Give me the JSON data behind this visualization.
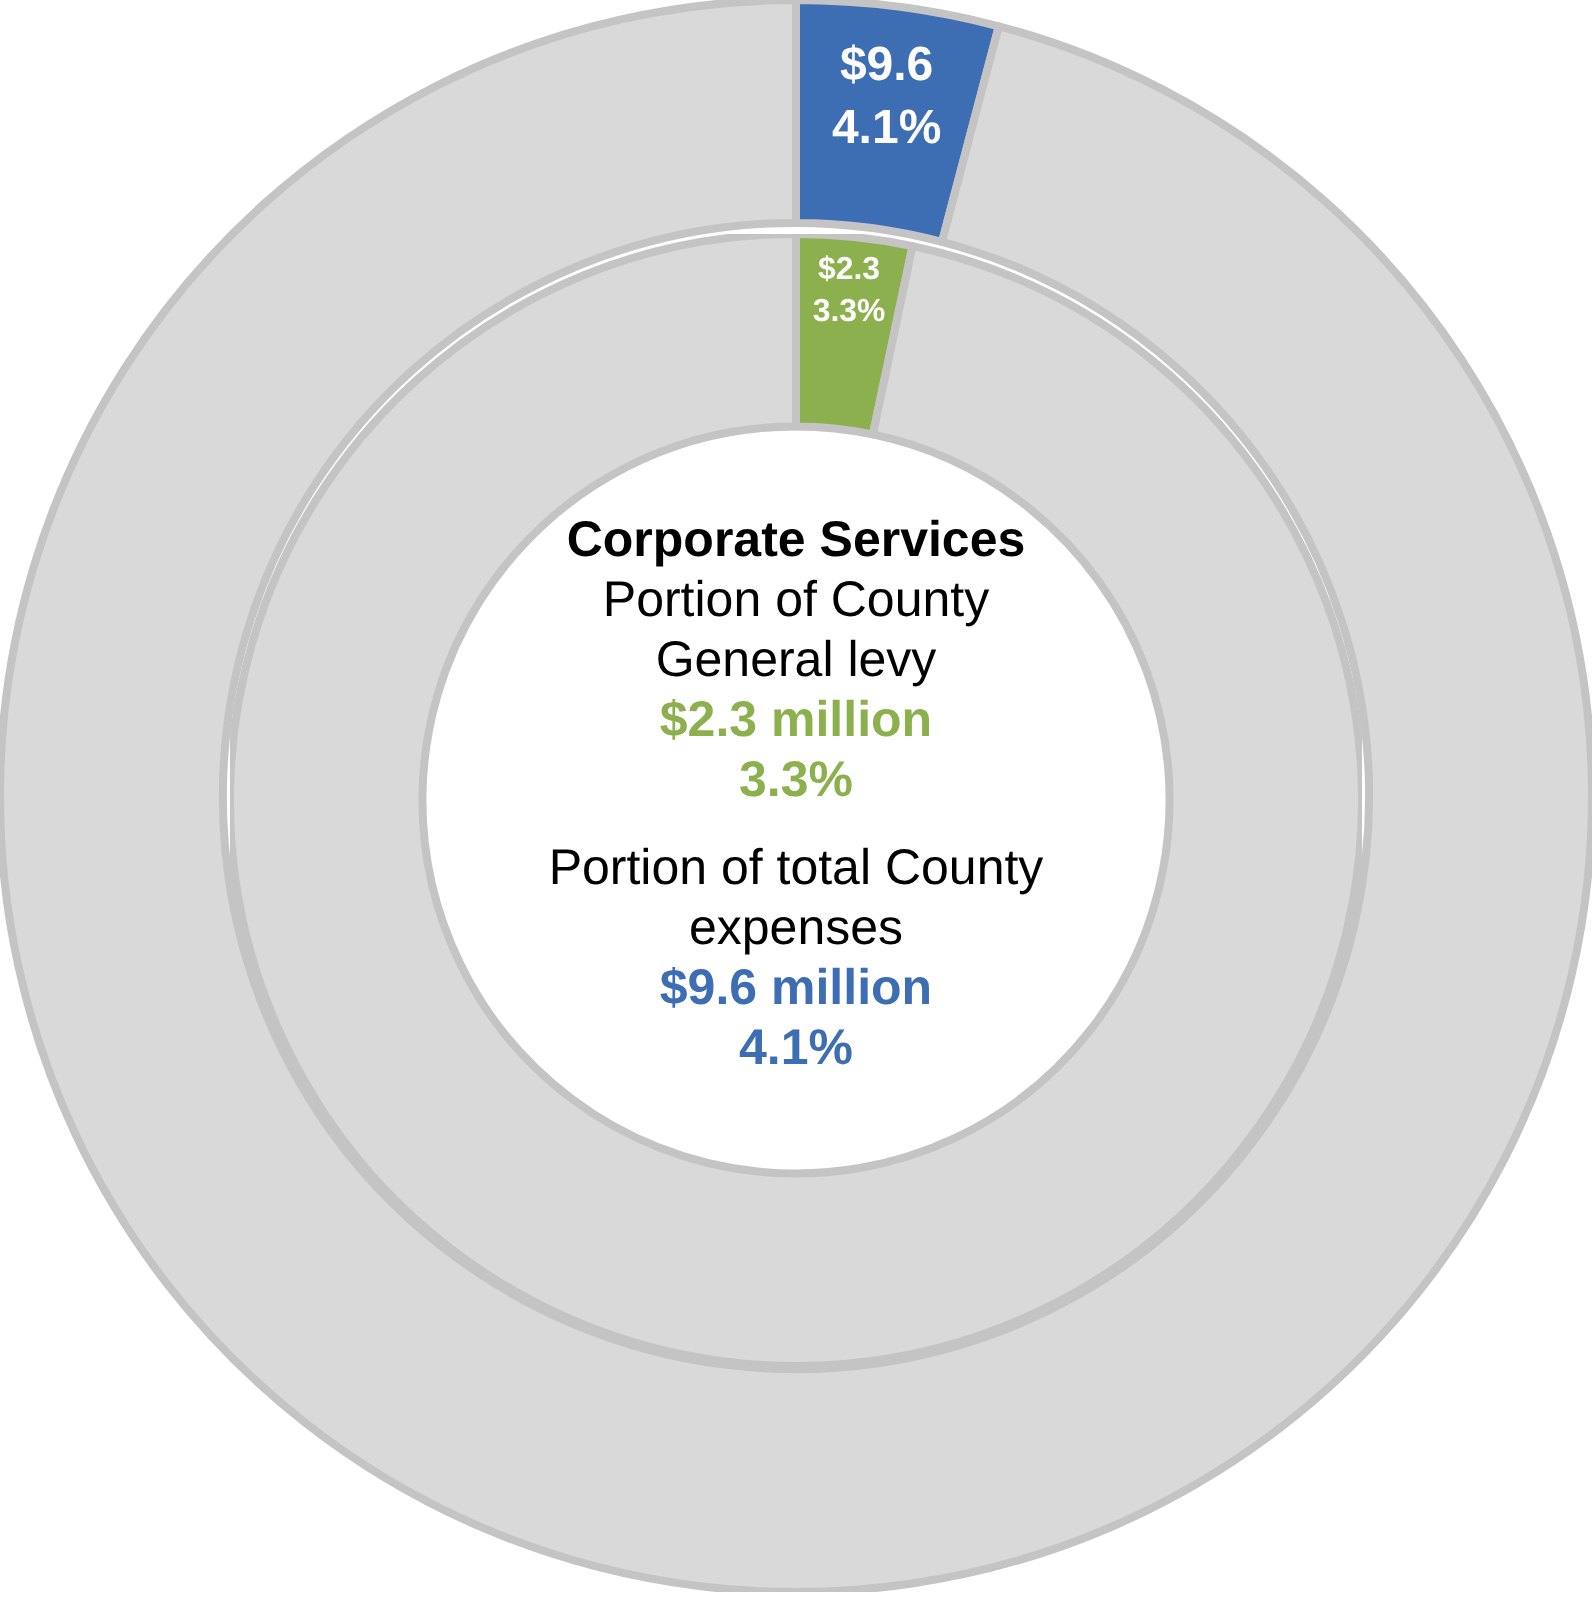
{
  "chart_data": [
    {
      "type": "donut",
      "categories": [
        null,
        null
      ],
      "values": [
        4.1,
        95.9
      ],
      "colors": [
        "#3d6db3",
        "#d9d9d9"
      ],
      "value_labels": [
        "$9.6\n4.1%",
        null
      ],
      "legend": false,
      "annotations": [
        "Corporate Services",
        "Portion of County General levy",
        "$2.3 million",
        "3.3%",
        "Portion of total County expenses",
        "$9.6 million",
        "4.1%"
      ]
    },
    {
      "type": "donut",
      "categories": [
        null,
        null
      ],
      "values": [
        3.3,
        96.7
      ],
      "colors": [
        "#8db04e",
        "#d9d9d9"
      ],
      "value_labels": [
        "$2.3\n3.3%",
        null
      ],
      "legend": false
    }
  ]
}
